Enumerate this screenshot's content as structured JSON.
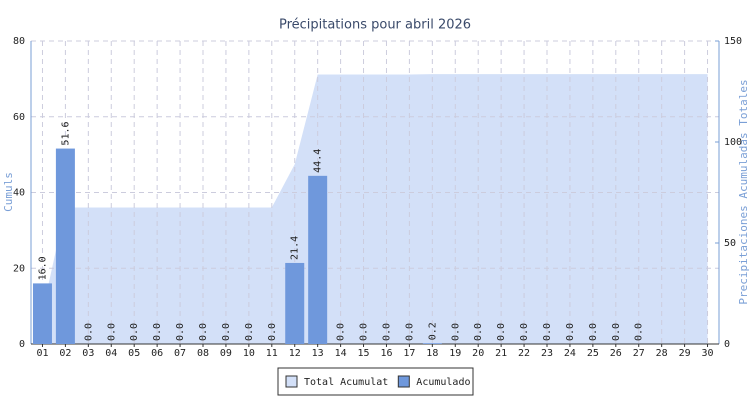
{
  "chart_data": {
    "type": "bar",
    "title": "Précipitations pour abril 2026",
    "y_label": "Cumuls",
    "y2_label": "Precipitaciones Acumuladas Totales",
    "categories": [
      "01",
      "02",
      "03",
      "04",
      "05",
      "06",
      "07",
      "08",
      "09",
      "10",
      "11",
      "12",
      "13",
      "14",
      "15",
      "16",
      "17",
      "18",
      "19",
      "20",
      "21",
      "22",
      "23",
      "24",
      "25",
      "26",
      "27",
      "28",
      "29",
      "30"
    ],
    "series": [
      {
        "name": "Total Acumulat",
        "type": "area",
        "axis": "y2",
        "color": "#d3e0f8",
        "values": [
          16,
          67.6,
          67.6,
          67.6,
          67.6,
          67.6,
          67.6,
          67.6,
          67.6,
          67.6,
          67.6,
          89,
          133.4,
          133.4,
          133.4,
          133.4,
          133.4,
          133.6,
          133.6,
          133.6,
          133.6,
          133.6,
          133.6,
          133.6,
          133.6,
          133.6,
          133.6,
          133.6,
          133.6,
          133.6
        ]
      },
      {
        "name": "Acumulado",
        "type": "bar",
        "color": "#6f98dc",
        "values": [
          16,
          51.6,
          0,
          0,
          0,
          0,
          0,
          0,
          0,
          0,
          0,
          21.4,
          44.4,
          0,
          0,
          0,
          0,
          0.2,
          0,
          0,
          0,
          0,
          0,
          0,
          0,
          0,
          0,
          null,
          null,
          null
        ],
        "value_labels": [
          "16.0",
          "51.6",
          "0.0",
          "0.0",
          "0.0",
          "0.0",
          "0.0",
          "0.0",
          "0.0",
          "0.0",
          "0.0",
          "21.4",
          "44.4",
          "0.0",
          "0.0",
          "0.0",
          "0.0",
          "0.2",
          "0.0",
          "0.0",
          "0.0",
          "0.0",
          "0.0",
          "0.0",
          "0.0",
          "0.0",
          "0.0",
          null,
          null,
          null
        ]
      }
    ],
    "ylim": [
      0,
      80
    ],
    "yticks": [
      0,
      20,
      40,
      60,
      80
    ],
    "y2lim": [
      0,
      150
    ],
    "y2ticks": [
      0,
      50,
      100,
      150
    ],
    "grid": true,
    "legend": "bottom"
  }
}
